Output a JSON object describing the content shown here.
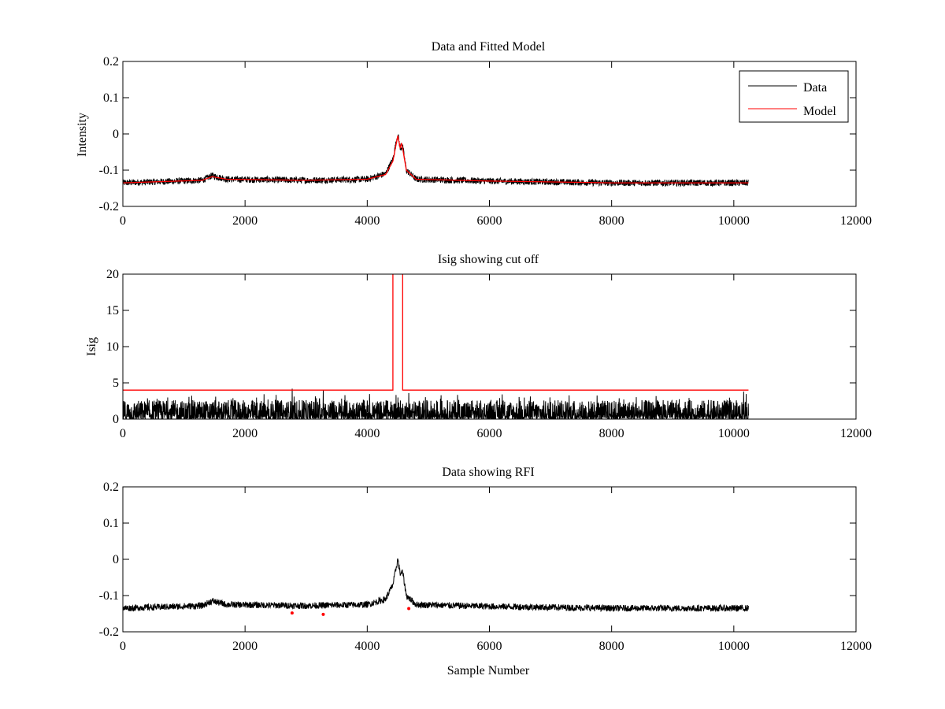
{
  "chart_data": [
    {
      "type": "line",
      "title": "Data and Fitted Model",
      "xlabel": "",
      "ylabel": "Intensity",
      "xlim": [
        0,
        12000
      ],
      "ylim": [
        -0.2,
        0.2
      ],
      "xticks": [
        0,
        2000,
        4000,
        6000,
        8000,
        10000,
        12000
      ],
      "yticks": [
        -0.2,
        -0.1,
        0,
        0.1,
        0.2
      ],
      "xtick_labels": [
        "0",
        "2000",
        "4000",
        "6000",
        "8000",
        "10000",
        "12000"
      ],
      "ytick_labels": [
        "-0.2",
        "-0.1",
        "0",
        "0.1",
        "0.2"
      ],
      "legend_position": "top-right",
      "series": [
        {
          "name": "Data",
          "color": "#000000",
          "kind": "noisy",
          "x_end": 10240,
          "noise_amplitude": 0.009,
          "baseline": [
            [
              0,
              -0.135
            ],
            [
              1300,
              -0.128
            ],
            [
              1460,
              -0.115
            ],
            [
              1700,
              -0.125
            ],
            [
              3000,
              -0.128
            ],
            [
              4000,
              -0.125
            ],
            [
              4300,
              -0.11
            ],
            [
              4420,
              -0.07
            ],
            [
              4500,
              0.0
            ],
            [
              4540,
              -0.04
            ],
            [
              4580,
              -0.035
            ],
            [
              4640,
              -0.1
            ],
            [
              4800,
              -0.125
            ],
            [
              6000,
              -0.13
            ],
            [
              8000,
              -0.135
            ],
            [
              10240,
              -0.135
            ]
          ]
        },
        {
          "name": "Model",
          "color": "#ff0000",
          "kind": "smooth",
          "x": [
            0,
            1300,
            1460,
            1700,
            3000,
            4000,
            4300,
            4420,
            4500,
            4540,
            4560,
            4580,
            4640,
            4800,
            6000,
            8000,
            10240
          ],
          "y": [
            -0.135,
            -0.128,
            -0.118,
            -0.125,
            -0.128,
            -0.125,
            -0.112,
            -0.075,
            -0.005,
            -0.04,
            -0.025,
            -0.04,
            -0.1,
            -0.125,
            -0.13,
            -0.135,
            -0.135
          ]
        }
      ]
    },
    {
      "type": "line",
      "title": "Isig showing cut off",
      "xlabel": "",
      "ylabel": "Isig",
      "xlim": [
        0,
        12000
      ],
      "ylim": [
        0,
        20
      ],
      "xticks": [
        0,
        2000,
        4000,
        6000,
        8000,
        10000,
        12000
      ],
      "yticks": [
        0,
        5,
        10,
        15,
        20
      ],
      "xtick_labels": [
        "0",
        "2000",
        "4000",
        "6000",
        "8000",
        "10000",
        "12000"
      ],
      "ytick_labels": [
        "0",
        "5",
        "10",
        "15",
        "20"
      ],
      "series": [
        {
          "name": "Isig",
          "color": "#000000",
          "kind": "spiky",
          "x_end": 10240,
          "typical_max": 2.5,
          "spikes": [
            [
              2770,
              4.2
            ],
            [
              3280,
              4.0
            ],
            [
              4680,
              3.6
            ],
            [
              10160,
              3.8
            ]
          ]
        },
        {
          "name": "Cut off",
          "color": "#ff0000",
          "kind": "step",
          "x": [
            0,
            4420,
            4420,
            4580,
            4580,
            10240
          ],
          "y": [
            4,
            4,
            21,
            21,
            4,
            4
          ]
        }
      ]
    },
    {
      "type": "line",
      "title": "Data showing RFI",
      "xlabel": "Sample Number",
      "ylabel": "",
      "xlim": [
        0,
        12000
      ],
      "ylim": [
        -0.2,
        0.2
      ],
      "xticks": [
        0,
        2000,
        4000,
        6000,
        8000,
        10000,
        12000
      ],
      "yticks": [
        -0.2,
        -0.1,
        0,
        0.1,
        0.2
      ],
      "xtick_labels": [
        "0",
        "2000",
        "4000",
        "6000",
        "8000",
        "10000",
        "12000"
      ],
      "ytick_labels": [
        "-0.2",
        "-0.1",
        "0",
        "0.1",
        "0.2"
      ],
      "series": [
        {
          "name": "Data",
          "color": "#000000",
          "kind": "noisy",
          "x_end": 10240,
          "noise_amplitude": 0.009,
          "baseline": [
            [
              0,
              -0.135
            ],
            [
              1300,
              -0.128
            ],
            [
              1460,
              -0.115
            ],
            [
              1700,
              -0.125
            ],
            [
              3000,
              -0.128
            ],
            [
              4000,
              -0.125
            ],
            [
              4300,
              -0.11
            ],
            [
              4420,
              -0.07
            ],
            [
              4500,
              0.0
            ],
            [
              4540,
              -0.04
            ],
            [
              4580,
              -0.035
            ],
            [
              4640,
              -0.1
            ],
            [
              4800,
              -0.125
            ],
            [
              6000,
              -0.13
            ],
            [
              8000,
              -0.135
            ],
            [
              10240,
              -0.135
            ]
          ]
        },
        {
          "name": "RFI",
          "color": "#ff0000",
          "kind": "markers",
          "x": [
            2770,
            3280,
            4680
          ],
          "y": [
            -0.148,
            -0.152,
            -0.136
          ]
        }
      ]
    }
  ]
}
